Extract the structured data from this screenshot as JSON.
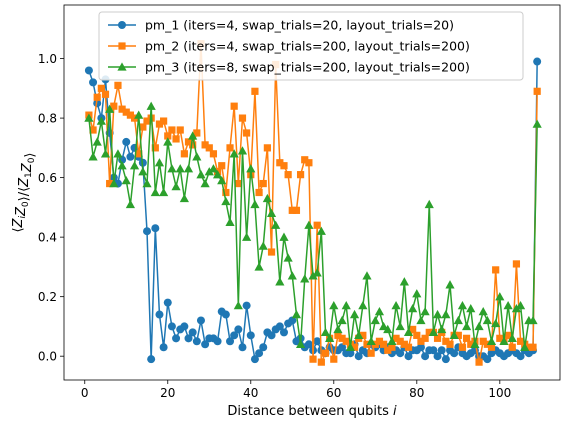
{
  "chart_data": {
    "type": "line",
    "title": "",
    "xlabel": "Distance between qubits i",
    "ylabel": "⟨Z_i Z_0⟩/⟨Z_1 Z_0⟩",
    "xlim": [
      -5,
      114.5
    ],
    "ylim": [
      -0.08,
      1.18
    ],
    "xticks": [
      0,
      20,
      40,
      60,
      80,
      100
    ],
    "xtick_labels": [
      "0",
      "20",
      "40",
      "60",
      "80",
      "100"
    ],
    "yticks": [
      0.0,
      0.2,
      0.4,
      0.6,
      0.8,
      1.0
    ],
    "ytick_labels": [
      "0.0",
      "0.2",
      "0.4",
      "0.6",
      "0.8",
      "1.0"
    ],
    "grid": false,
    "legend_position": "top-center",
    "series": [
      {
        "name": "pm_1 (iters=4, swap_trials=20, layout_trials=20)",
        "color": "#1f77b4",
        "marker": "circle",
        "x": [
          1,
          2,
          3,
          4,
          5,
          6,
          7,
          8,
          9,
          10,
          11,
          12,
          13,
          14,
          15,
          16,
          17,
          18,
          19,
          20,
          21,
          22,
          23,
          24,
          25,
          26,
          27,
          28,
          29,
          30,
          31,
          32,
          33,
          34,
          35,
          36,
          37,
          38,
          39,
          40,
          41,
          42,
          43,
          44,
          45,
          46,
          47,
          48,
          49,
          50,
          51,
          52,
          53,
          54,
          55,
          56,
          57,
          58,
          59,
          60,
          61,
          62,
          63,
          64,
          65,
          66,
          67,
          68,
          69,
          70,
          71,
          72,
          73,
          74,
          75,
          76,
          77,
          78,
          79,
          80,
          81,
          82,
          83,
          84,
          85,
          86,
          87,
          88,
          89,
          90,
          91,
          92,
          93,
          94,
          95,
          96,
          97,
          98,
          99,
          100,
          101,
          102,
          103,
          104,
          105,
          106,
          107,
          108,
          109
        ],
        "y": [
          0.96,
          0.92,
          0.85,
          0.8,
          0.93,
          0.75,
          0.6,
          0.58,
          0.66,
          0.72,
          0.67,
          0.7,
          0.67,
          0.65,
          0.42,
          -0.01,
          0.43,
          0.14,
          0.03,
          0.18,
          0.1,
          0.06,
          0.09,
          0.1,
          0.06,
          0.08,
          0.05,
          0.12,
          0.04,
          0.06,
          0.06,
          0.05,
          0.15,
          0.14,
          0.05,
          0.07,
          0.09,
          0.03,
          0.17,
          0.07,
          -0.01,
          0.01,
          0.03,
          0.08,
          0.07,
          0.09,
          0.1,
          0.08,
          0.11,
          0.12,
          0.05,
          0.06,
          0.03,
          0.04,
          0.02,
          0.05,
          0.02,
          0.01,
          0.03,
          0.02,
          0.02,
          0.03,
          0.01,
          0.01,
          0.04,
          0.0,
          0.02,
          0.01,
          0.04,
          0.03,
          0.04,
          0.02,
          0.03,
          0.01,
          0.02,
          0.01,
          0.03,
          0.0,
          0.02,
          0.02,
          0.03,
          0.0,
          0.02,
          0.02,
          0.0,
          0.02,
          -0.01,
          0.02,
          0.01,
          0.03,
          0.01,
          0.0,
          0.01,
          0.02,
          0.0,
          0.0,
          -0.01,
          0.01,
          0.02,
          0.01,
          0.0,
          0.01,
          0.02,
          0.01,
          0.0,
          0.02,
          0.01,
          0.02,
          0.99
        ]
      },
      {
        "name": "pm_2 (iters=4, swap_trials=200, layout_trials=200)",
        "color": "#ff7f0e",
        "marker": "square",
        "x": [
          1,
          2,
          3,
          4,
          5,
          6,
          7,
          8,
          9,
          10,
          11,
          12,
          13,
          14,
          15,
          16,
          17,
          18,
          19,
          20,
          21,
          22,
          23,
          24,
          25,
          26,
          27,
          28,
          29,
          30,
          31,
          32,
          33,
          34,
          35,
          36,
          37,
          38,
          39,
          40,
          41,
          42,
          43,
          44,
          45,
          46,
          47,
          48,
          49,
          50,
          51,
          52,
          53,
          54,
          55,
          56,
          57,
          58,
          59,
          60,
          61,
          62,
          63,
          64,
          65,
          66,
          67,
          68,
          69,
          70,
          71,
          72,
          73,
          74,
          75,
          76,
          77,
          78,
          79,
          80,
          81,
          82,
          83,
          84,
          85,
          86,
          87,
          88,
          89,
          90,
          91,
          92,
          93,
          94,
          95,
          96,
          97,
          98,
          99,
          100,
          101,
          102,
          103,
          104,
          105,
          106,
          107,
          108,
          109
        ],
        "y": [
          0.81,
          0.76,
          0.87,
          0.9,
          0.88,
          0.58,
          0.84,
          0.91,
          0.83,
          0.82,
          0.81,
          0.8,
          0.68,
          0.77,
          0.79,
          0.8,
          0.7,
          0.78,
          0.79,
          0.74,
          0.76,
          0.73,
          0.76,
          0.68,
          0.72,
          0.71,
          0.75,
          1.05,
          0.71,
          0.7,
          0.68,
          0.62,
          0.64,
          0.55,
          0.7,
          0.84,
          0.58,
          0.8,
          0.75,
          0.61,
          0.89,
          0.55,
          0.58,
          0.7,
          0.35,
          0.98,
          0.65,
          0.64,
          0.61,
          0.49,
          0.49,
          0.61,
          0.66,
          0.65,
          -0.01,
          0.44,
          -0.02,
          0.01,
          0.06,
          -0.01,
          0.07,
          0.06,
          0.05,
          0.04,
          0.03,
          0.06,
          0.07,
          0.04,
          0.01,
          0.04,
          0.05,
          0.04,
          0.02,
          0.03,
          0.06,
          0.05,
          0.04,
          0.03,
          0.09,
          0.07,
          0.05,
          0.06,
          0.08,
          0.08,
          0.06,
          0.08,
          0.05,
          0.04,
          0.07,
          0.07,
          0.03,
          0.06,
          0.04,
          0.05,
          -0.02,
          0.05,
          0.04,
          0.03,
          0.29,
          0.06,
          0.05,
          0.07,
          0.03,
          0.31,
          0.05,
          0.04,
          0.03,
          0.03,
          0.89
        ]
      },
      {
        "name": "pm_3 (iters=8, swap_trials=200, layout_trials=200)",
        "color": "#2ca02c",
        "marker": "triangle",
        "x": [
          1,
          2,
          3,
          4,
          5,
          6,
          7,
          8,
          9,
          10,
          11,
          12,
          13,
          14,
          15,
          16,
          17,
          18,
          19,
          20,
          21,
          22,
          23,
          24,
          25,
          26,
          27,
          28,
          29,
          30,
          31,
          32,
          33,
          34,
          35,
          36,
          37,
          38,
          39,
          40,
          41,
          42,
          43,
          44,
          45,
          46,
          47,
          48,
          49,
          50,
          51,
          52,
          53,
          54,
          55,
          56,
          57,
          58,
          59,
          60,
          61,
          62,
          63,
          64,
          65,
          66,
          67,
          68,
          69,
          70,
          71,
          72,
          73,
          74,
          75,
          76,
          77,
          78,
          79,
          80,
          81,
          82,
          83,
          84,
          85,
          86,
          87,
          88,
          89,
          90,
          91,
          92,
          93,
          94,
          95,
          96,
          97,
          98,
          99,
          100,
          101,
          102,
          103,
          104,
          105,
          106,
          107,
          108,
          109
        ],
        "y": [
          0.8,
          0.67,
          0.72,
          0.79,
          0.68,
          0.83,
          0.58,
          0.68,
          0.64,
          0.59,
          0.51,
          0.64,
          0.81,
          0.62,
          0.58,
          0.84,
          0.55,
          0.65,
          0.55,
          0.72,
          0.63,
          0.57,
          0.63,
          0.53,
          0.63,
          0.74,
          0.67,
          0.61,
          0.58,
          0.62,
          0.63,
          0.61,
          0.59,
          0.52,
          0.45,
          0.68,
          0.17,
          0.69,
          0.4,
          0.63,
          0.51,
          0.3,
          0.37,
          0.53,
          0.48,
          0.44,
          0.25,
          0.4,
          0.33,
          0.27,
          0.14,
          0.04,
          0.26,
          0.44,
          0.27,
          0.28,
          0.42,
          0.08,
          0.06,
          0.17,
          0.09,
          0.12,
          0.17,
          0.03,
          0.14,
          0.07,
          0.17,
          0.27,
          0.05,
          0.12,
          0.15,
          0.1,
          0.09,
          0.05,
          0.17,
          0.1,
          0.25,
          0.08,
          0.16,
          0.21,
          0.12,
          0.15,
          0.51,
          0.08,
          0.14,
          0.09,
          0.14,
          0.24,
          0.07,
          0.12,
          0.17,
          0.1,
          0.16,
          0.04,
          0.1,
          0.15,
          0.12,
          0.05,
          0.11,
          0.2,
          0.05,
          0.17,
          0.06,
          0.16,
          0.17,
          0.03,
          0.12,
          0.12,
          0.78
        ]
      }
    ]
  }
}
